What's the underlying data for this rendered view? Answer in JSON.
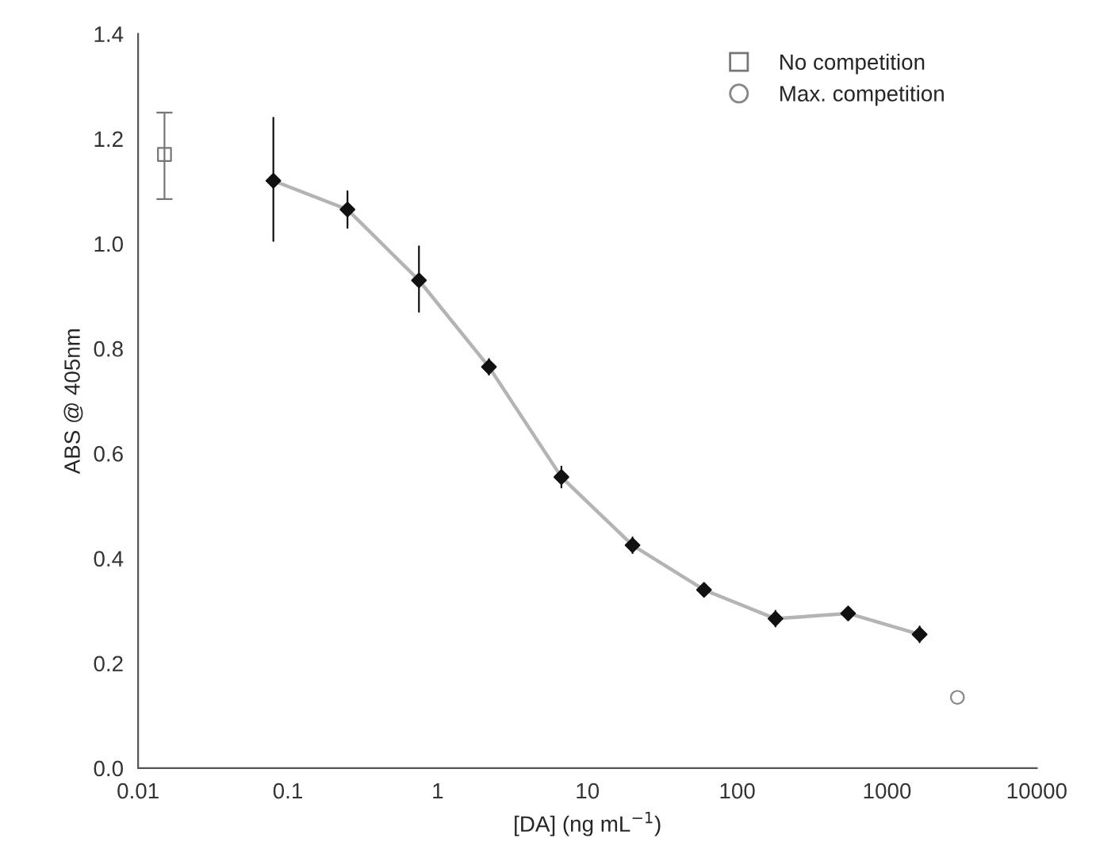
{
  "chart_data": {
    "type": "scatter",
    "xlabel": "[DA] (ng mL$^{−1}$)",
    "ylabel": "ABS @ 405nm",
    "log": "x",
    "xlim": [
      0.01,
      10000
    ],
    "xticks": [
      0.01,
      0.1,
      1,
      10,
      100,
      1000,
      10000
    ],
    "ylim": [
      0,
      1.4
    ],
    "yticks": [
      {
        "value": 0,
        "label": "0.0"
      },
      0.2,
      0.4,
      0.6,
      0.8,
      {
        "value": 1,
        "label": "1.0"
      },
      1.2,
      1.4
    ],
    "grid": false,
    "legend": "top right",
    "series": [
      {
        "type": "line",
        "color": "#b4b4b4",
        "marker": "none",
        "x": [
          0.08,
          0.25,
          0.75,
          2.2,
          6.7,
          20,
          60,
          180,
          550,
          1650
        ],
        "values": [
          1.12,
          1.065,
          0.93,
          0.765,
          0.555,
          0.425,
          0.34,
          0.285,
          0.295,
          0.255
        ]
      },
      {
        "color": "#111111",
        "marker": "diamond",
        "x": [
          0.08,
          0.25,
          0.75,
          2.2,
          6.7,
          20,
          60,
          180,
          550,
          1650
        ],
        "values": [
          1.12,
          1.065,
          0.93,
          0.765,
          0.555,
          0.425,
          0.34,
          0.285,
          0.295,
          0.255
        ],
        "errors": [
          [
            1.005,
            1.24
          ],
          0.035,
          [
            0.87,
            0.995
          ],
          0.015,
          0.02,
          0.015,
          0.01,
          0.015,
          0.01,
          0.015
        ]
      },
      {
        "name": "No competition",
        "color": "#777777",
        "marker": "square",
        "x": [
          0.015
        ],
        "values": [
          1.17
        ],
        "errors": [
          [
            1.085,
            1.25
          ]
        ]
      },
      {
        "name": "Max. competition",
        "color": "#888888",
        "marker": "circle",
        "x": [
          2950
        ],
        "values": [
          0.135
        ]
      }
    ]
  }
}
